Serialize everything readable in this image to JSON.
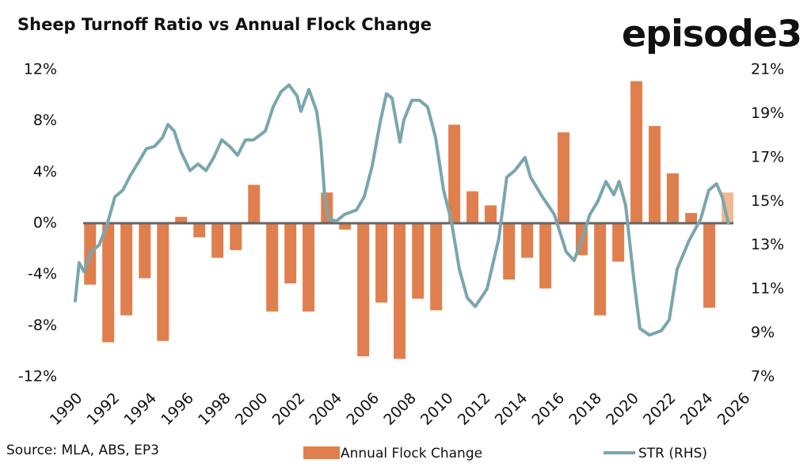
{
  "chart_data": {
    "type": "bar-line",
    "title": "Sheep Turnoff Ratio vs Annual Flock Change",
    "brand": "episode3",
    "source": "Source: MLA, ABS, EP3",
    "xlim": [
      1990,
      2026
    ],
    "xticks": [
      1990,
      1992,
      1994,
      1996,
      1998,
      2000,
      2002,
      2004,
      2006,
      2008,
      2010,
      2012,
      2014,
      2016,
      2018,
      2020,
      2022,
      2024,
      2026
    ],
    "ylim": [
      -12,
      12
    ],
    "yticks": [
      {
        "value": -12,
        "label": "-12%"
      },
      {
        "value": -8,
        "label": "-8%"
      },
      {
        "value": -4,
        "label": "-4%"
      },
      {
        "value": 0,
        "label": "0%"
      },
      {
        "value": 4,
        "label": "4%"
      },
      {
        "value": 8,
        "label": "8%"
      },
      {
        "value": 12,
        "label": "12%"
      }
    ],
    "y2lim": [
      7,
      21
    ],
    "y2ticks": [
      {
        "value": 7,
        "label": "7%"
      },
      {
        "value": 9,
        "label": "9%"
      },
      {
        "value": 11,
        "label": "11%"
      },
      {
        "value": 13,
        "label": "13%"
      },
      {
        "value": 15,
        "label": "15%"
      },
      {
        "value": 17,
        "label": "17%"
      },
      {
        "value": 19,
        "label": "19%"
      },
      {
        "value": 21,
        "label": "21%"
      }
    ],
    "series": [
      {
        "name": "Annual Flock Change",
        "type": "bar",
        "color": "#e07f4e",
        "highlight": {
          "index": 35,
          "color": "#f2b795"
        },
        "x": [
          1990.8,
          1991.78,
          1992.76,
          1993.75,
          1994.73,
          1995.71,
          1996.69,
          1997.67,
          1998.66,
          1999.64,
          2000.62,
          2001.6,
          2002.58,
          2003.57,
          2004.55,
          2005.53,
          2006.51,
          2007.49,
          2008.48,
          2009.46,
          2010.44,
          2011.42,
          2012.4,
          2013.39,
          2014.37,
          2015.35,
          2016.33,
          2017.31,
          2018.3,
          2019.28,
          2020.26,
          2021.24,
          2022.22,
          2023.21,
          2024.19,
          2025.17
        ],
        "values": [
          -4.8,
          -9.3,
          -7.2,
          -4.3,
          -9.2,
          0.5,
          -1.1,
          -2.7,
          -2.1,
          3.0,
          -6.9,
          -4.7,
          -6.9,
          2.4,
          -0.5,
          -10.4,
          -6.2,
          -10.6,
          -5.9,
          -6.8,
          7.7,
          2.5,
          1.4,
          -4.4,
          -2.7,
          -5.1,
          7.1,
          -2.5,
          -7.2,
          -3.0,
          11.1,
          7.6,
          3.9,
          0.8,
          -6.6,
          2.4
        ]
      },
      {
        "name": "STR (RHS)",
        "type": "line",
        "axis": "y2",
        "color": "#7aa6ad",
        "x": [
          1990.0,
          1990.21,
          1990.47,
          1990.85,
          1991.28,
          1991.71,
          1992.14,
          1992.56,
          1992.99,
          1993.42,
          1993.84,
          1994.27,
          1994.7,
          1995.0,
          1995.34,
          1995.68,
          1996.19,
          1996.62,
          1997.05,
          1997.47,
          1997.9,
          1998.33,
          1998.75,
          1999.18,
          1999.61,
          2000.25,
          2000.67,
          2001.1,
          2001.53,
          2001.96,
          2002.17,
          2002.6,
          2003.02,
          2003.24,
          2003.45,
          2003.66,
          2004.09,
          2004.52,
          2005.16,
          2005.58,
          2006.01,
          2006.44,
          2006.78,
          2007.08,
          2007.51,
          2007.72,
          2008.15,
          2008.57,
          2009.0,
          2009.43,
          2009.86,
          2010.28,
          2010.71,
          2011.14,
          2011.57,
          2012.2,
          2012.84,
          2013.27,
          2013.7,
          2014.25,
          2014.55,
          2015.19,
          2015.83,
          2016.47,
          2016.9,
          2017.33,
          2017.75,
          2018.18,
          2018.61,
          2019.04,
          2019.33,
          2019.68,
          2020.11,
          2020.45,
          2020.96,
          2021.6,
          2022.03,
          2022.45,
          2023.09,
          2023.73,
          2024.16,
          2024.58,
          2024.88,
          2025.22
        ],
        "values": [
          10.46,
          12.2,
          11.8,
          12.7,
          13.0,
          13.9,
          15.2,
          15.5,
          16.2,
          16.8,
          17.4,
          17.5,
          17.9,
          18.5,
          18.2,
          17.3,
          16.4,
          16.7,
          16.4,
          17.0,
          17.8,
          17.5,
          17.1,
          17.8,
          17.8,
          18.2,
          19.3,
          20.0,
          20.3,
          19.8,
          19.1,
          20.1,
          19.1,
          17.7,
          15.2,
          14.2,
          14.1,
          14.4,
          14.6,
          15.2,
          16.6,
          18.6,
          19.9,
          19.7,
          17.7,
          18.7,
          19.6,
          19.6,
          19.3,
          17.9,
          15.5,
          14.1,
          11.9,
          10.6,
          10.2,
          11.0,
          13.3,
          16.1,
          16.4,
          17.0,
          16.1,
          15.2,
          14.4,
          12.7,
          12.3,
          13.3,
          14.4,
          15.0,
          15.9,
          15.3,
          15.9,
          14.8,
          11.5,
          9.2,
          8.9,
          9.1,
          9.6,
          11.9,
          13.2,
          14.2,
          15.5,
          15.8,
          15.2,
          14.0
        ]
      }
    ]
  }
}
